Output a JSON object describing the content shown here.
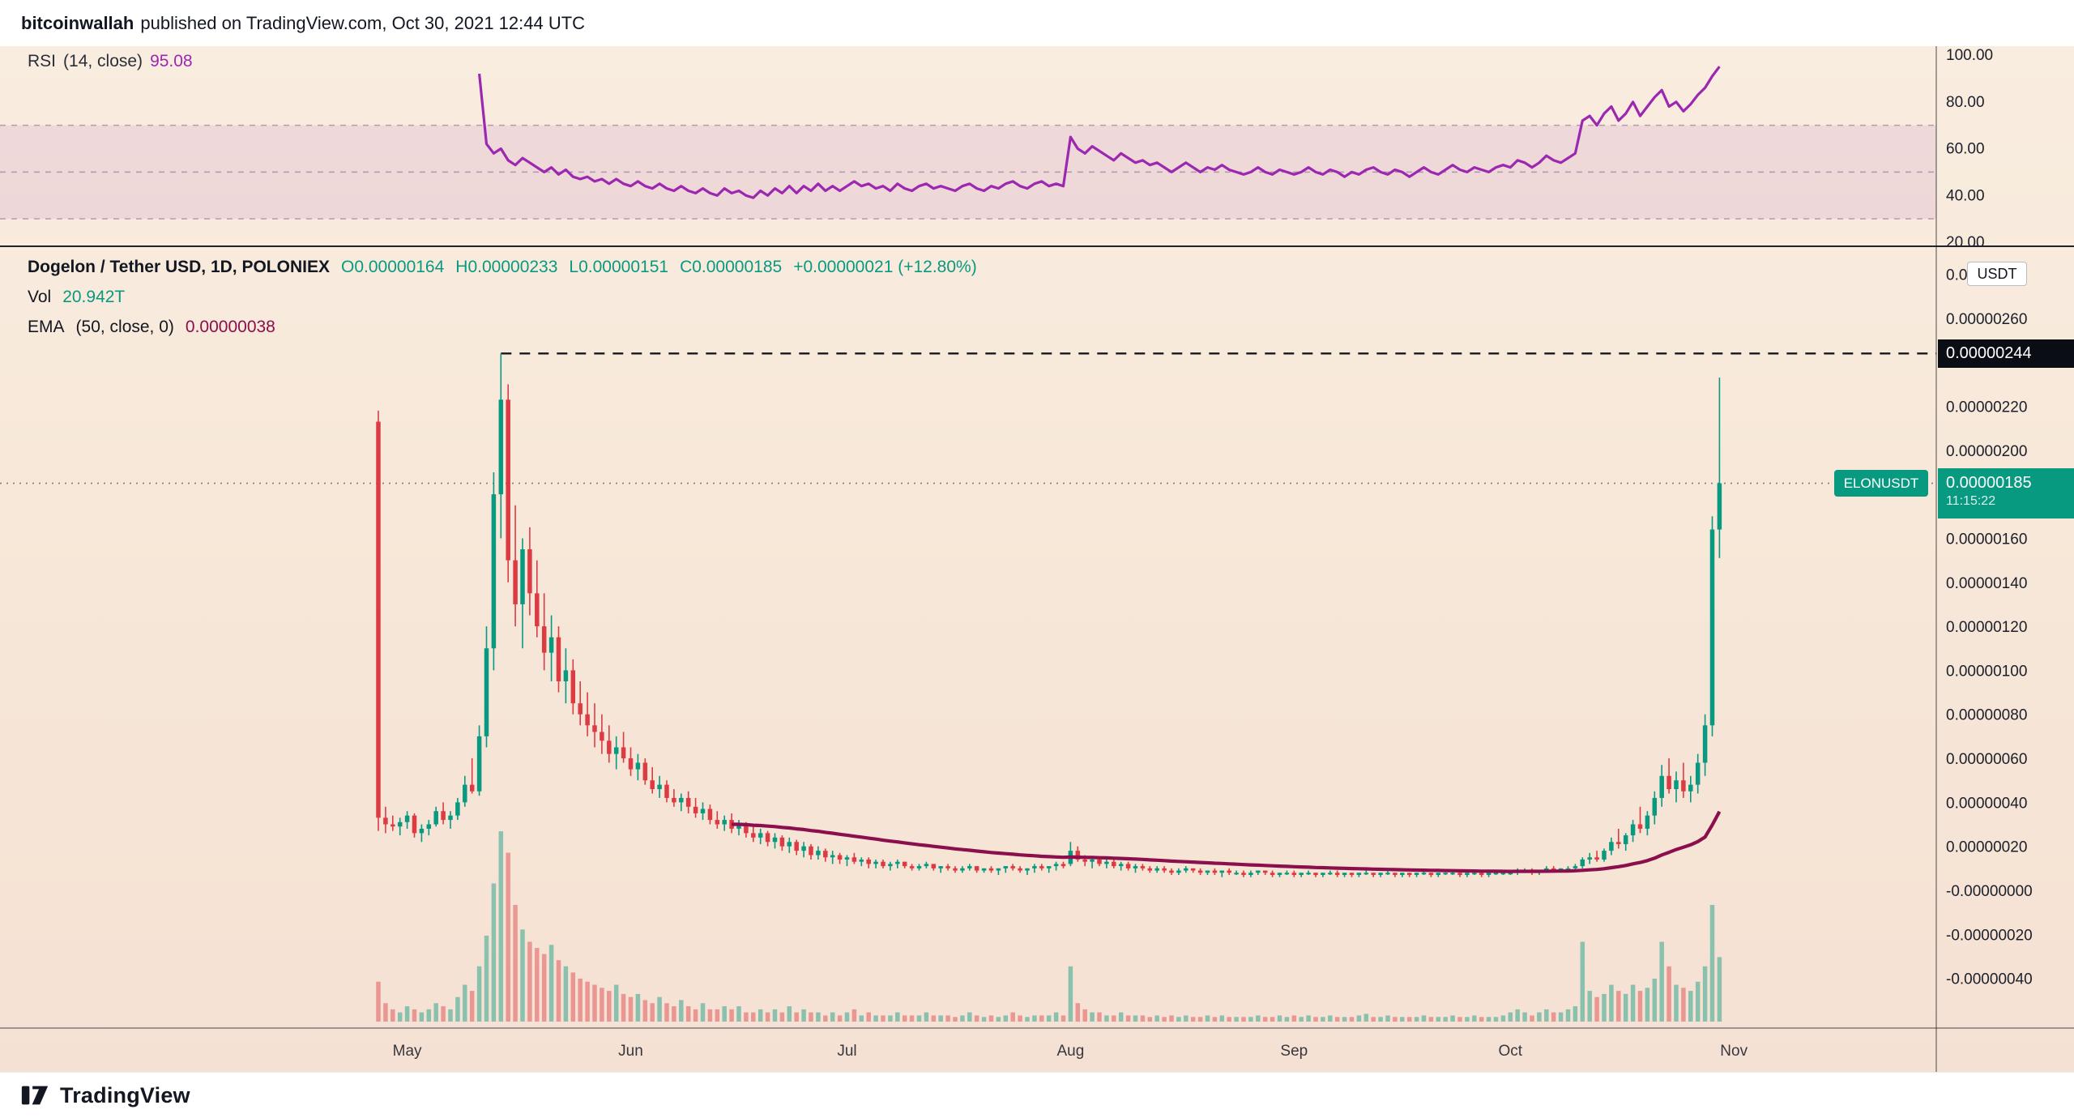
{
  "header": {
    "author": "bitcoinwallah",
    "caption": "published on TradingView.com, Oct 30, 2021 12:44 UTC"
  },
  "footer": {
    "brand": "TradingView"
  },
  "colors": {
    "up": "#089981",
    "down": "#dd3b44",
    "vol_up": "rgba(8,153,129,0.45)",
    "vol_down": "rgba(221,59,68,0.45)",
    "rsi": "#9c27b0",
    "ema": "#8b0e4d",
    "band_fill": "rgba(156,39,176,0.10)",
    "band_line": "rgba(128,96,142,0.55)",
    "axis_text": "#1b1f2b",
    "chip_black": "#0b0d14",
    "chip_green": "#089981"
  },
  "rsi_pane": {
    "legend": {
      "title": "RSI",
      "params": "(14, close)",
      "value": "95.08"
    },
    "band": [
      30,
      70
    ],
    "guides": [
      70,
      50,
      30
    ],
    "axis": [
      {
        "text": "100.00",
        "value": 100
      },
      {
        "text": "80.00",
        "value": 80
      },
      {
        "text": "60.00",
        "value": 60
      },
      {
        "text": "40.00",
        "value": 40
      },
      {
        "text": "20.00",
        "value": 20
      }
    ]
  },
  "main_pane": {
    "legend": {
      "title": "Dogelon / Tether USD, 1D, POLONIEX",
      "o": "O0.00000164",
      "h": "H0.00000233",
      "l": "L0.00000151",
      "c": "C0.00000185",
      "change": "+0.00000021 (+12.80%)",
      "vol_label": "Vol",
      "vol_value": "20.942T",
      "ema_label": "EMA",
      "ema_params": "(50, close, 0)",
      "ema_value": "0.00000038"
    },
    "usdt_chip": "USDT",
    "high_chip": "0.00000244",
    "price_chip": {
      "symbol": "ELONUSDT",
      "price": "0.00000185",
      "time": "11:15:22"
    },
    "axis_labels": [
      {
        "text": "0.00000280",
        "value": 280
      },
      {
        "text": "0.00000260",
        "value": 260
      },
      {
        "text": "0.00000220",
        "value": 220
      },
      {
        "text": "0.00000200",
        "value": 200
      },
      {
        "text": "0.00000160",
        "value": 160
      },
      {
        "text": "0.00000140",
        "value": 140
      },
      {
        "text": "0.00000120",
        "value": 120
      },
      {
        "text": "0.00000100",
        "value": 100
      },
      {
        "text": "0.00000080",
        "value": 80
      },
      {
        "text": "0.00000060",
        "value": 60
      },
      {
        "text": "0.00000040",
        "value": 40
      },
      {
        "text": "0.00000020",
        "value": 20
      },
      {
        "text": "-0.00000000",
        "value": 0
      },
      {
        "text": "-0.00000020",
        "value": -20
      },
      {
        "text": "-0.00000040",
        "value": -40
      }
    ]
  },
  "chart_data": {
    "type": "candlestick",
    "title": "Dogelon / Tether USD, 1D, POLONIEX",
    "symbol": "ELONUSDT",
    "interval": "1D",
    "price_multiplier": 1e-08,
    "current_price": 185,
    "current_volume": "20.942T",
    "high_line": 244,
    "high_line_start_index": 17,
    "months": [
      {
        "label": "May",
        "index": 4
      },
      {
        "label": "Jun",
        "index": 35
      },
      {
        "label": "Jul",
        "index": 65
      },
      {
        "label": "Aug",
        "index": 96
      },
      {
        "label": "Sep",
        "index": 127
      },
      {
        "label": "Oct",
        "index": 157
      },
      {
        "label": "Nov",
        "index": 188
      }
    ],
    "ohlcv": [
      [
        213,
        218,
        27,
        33,
        13
      ],
      [
        33,
        38,
        26,
        30,
        6
      ],
      [
        30,
        34,
        27,
        29,
        4
      ],
      [
        29,
        33,
        25,
        31,
        3
      ],
      [
        31,
        36,
        28,
        34,
        5
      ],
      [
        34,
        35,
        24,
        26,
        4
      ],
      [
        26,
        30,
        22,
        28,
        3
      ],
      [
        28,
        32,
        25,
        30,
        4
      ],
      [
        30,
        38,
        29,
        36,
        6
      ],
      [
        36,
        40,
        30,
        32,
        5
      ],
      [
        32,
        36,
        28,
        34,
        4
      ],
      [
        34,
        42,
        32,
        40,
        8
      ],
      [
        40,
        52,
        38,
        48,
        12
      ],
      [
        48,
        60,
        44,
        45,
        10
      ],
      [
        45,
        75,
        43,
        70,
        18
      ],
      [
        70,
        120,
        65,
        110,
        28
      ],
      [
        110,
        190,
        100,
        180,
        45
      ],
      [
        180,
        244,
        160,
        223,
        62
      ],
      [
        223,
        230,
        140,
        150,
        55
      ],
      [
        150,
        175,
        120,
        130,
        38
      ],
      [
        130,
        160,
        110,
        155,
        30
      ],
      [
        155,
        165,
        125,
        135,
        26
      ],
      [
        135,
        150,
        115,
        120,
        24
      ],
      [
        120,
        135,
        100,
        108,
        22
      ],
      [
        108,
        125,
        95,
        115,
        25
      ],
      [
        115,
        120,
        90,
        95,
        20
      ],
      [
        95,
        110,
        85,
        100,
        18
      ],
      [
        100,
        105,
        80,
        85,
        16
      ],
      [
        85,
        95,
        75,
        80,
        14
      ],
      [
        80,
        90,
        70,
        75,
        13
      ],
      [
        75,
        85,
        65,
        72,
        12
      ],
      [
        72,
        80,
        62,
        68,
        11
      ],
      [
        68,
        75,
        58,
        62,
        10
      ],
      [
        62,
        70,
        55,
        65,
        12
      ],
      [
        65,
        72,
        58,
        60,
        9
      ],
      [
        60,
        65,
        52,
        55,
        8
      ],
      [
        55,
        62,
        50,
        58,
        9
      ],
      [
        58,
        60,
        48,
        50,
        7
      ],
      [
        50,
        56,
        44,
        46,
        6
      ],
      [
        46,
        52,
        42,
        48,
        8
      ],
      [
        48,
        50,
        40,
        42,
        6
      ],
      [
        42,
        46,
        38,
        40,
        5
      ],
      [
        40,
        44,
        36,
        42,
        7
      ],
      [
        42,
        45,
        35,
        38,
        5
      ],
      [
        38,
        42,
        33,
        35,
        4
      ],
      [
        35,
        40,
        32,
        37,
        6
      ],
      [
        37,
        39,
        30,
        32,
        4
      ],
      [
        32,
        36,
        28,
        30,
        4
      ],
      [
        30,
        34,
        27,
        32,
        5
      ],
      [
        32,
        35,
        26,
        28,
        4
      ],
      [
        28,
        32,
        25,
        30,
        5
      ],
      [
        30,
        31,
        24,
        26,
        3
      ],
      [
        26,
        29,
        22,
        24,
        3
      ],
      [
        24,
        28,
        21,
        26,
        4
      ],
      [
        26,
        27,
        20,
        22,
        3
      ],
      [
        22,
        26,
        19,
        24,
        4
      ],
      [
        24,
        25,
        18,
        20,
        3
      ],
      [
        20,
        24,
        17,
        22,
        5
      ],
      [
        22,
        23,
        16,
        18,
        3
      ],
      [
        18,
        22,
        15,
        20,
        4
      ],
      [
        20,
        21,
        14,
        16,
        3
      ],
      [
        16,
        20,
        14,
        18,
        3
      ],
      [
        18,
        19,
        13,
        15,
        2
      ],
      [
        15,
        18,
        12,
        16,
        3
      ],
      [
        16,
        17,
        12,
        14,
        2
      ],
      [
        14,
        16,
        11,
        15,
        3
      ],
      [
        15,
        17,
        12,
        13,
        4
      ],
      [
        13,
        15,
        11,
        14,
        2
      ],
      [
        14,
        15,
        10,
        12,
        3
      ],
      [
        12,
        14,
        10,
        13,
        2
      ],
      [
        13,
        14,
        10,
        11,
        2
      ],
      [
        11,
        13,
        9,
        12,
        2
      ],
      [
        12,
        14,
        10,
        13,
        3
      ],
      [
        13,
        13,
        10,
        11,
        2
      ],
      [
        11,
        12,
        9,
        10,
        2
      ],
      [
        10,
        12,
        9,
        11,
        2
      ],
      [
        11,
        13,
        10,
        12,
        3
      ],
      [
        12,
        12,
        9,
        10,
        2
      ],
      [
        10,
        11,
        8,
        11,
        2
      ],
      [
        11,
        12,
        9,
        10,
        2
      ],
      [
        10,
        11,
        8,
        9,
        1.5
      ],
      [
        9,
        11,
        8,
        10,
        2
      ],
      [
        10,
        12,
        9,
        11,
        3
      ],
      [
        11,
        11,
        8,
        9,
        2
      ],
      [
        9,
        10,
        8,
        10,
        1.5
      ],
      [
        10,
        11,
        8,
        9,
        2
      ],
      [
        9,
        10,
        7,
        10,
        1.5
      ],
      [
        10,
        11,
        8,
        11,
        2
      ],
      [
        11,
        12,
        9,
        10,
        3
      ],
      [
        10,
        11,
        8,
        9,
        2
      ],
      [
        9,
        10,
        7,
        10,
        1.5
      ],
      [
        10,
        12,
        8,
        11,
        2
      ],
      [
        11,
        12,
        9,
        10,
        2
      ],
      [
        10,
        11,
        8,
        11,
        2
      ],
      [
        11,
        13,
        9,
        12,
        3
      ],
      [
        12,
        13,
        10,
        11,
        2
      ],
      [
        12,
        22,
        11,
        18,
        18
      ],
      [
        18,
        20,
        13,
        14,
        6
      ],
      [
        14,
        16,
        11,
        13,
        4
      ],
      [
        13,
        15,
        10,
        14,
        3
      ],
      [
        14,
        15,
        11,
        12,
        3
      ],
      [
        12,
        14,
        10,
        13,
        2
      ],
      [
        13,
        14,
        10,
        11,
        2
      ],
      [
        11,
        13,
        9,
        12,
        3
      ],
      [
        12,
        13,
        9,
        10,
        2
      ],
      [
        10,
        12,
        8,
        11,
        2
      ],
      [
        11,
        12,
        9,
        10,
        2
      ],
      [
        10,
        11,
        8,
        9,
        1.5
      ],
      [
        9,
        11,
        8,
        10,
        2
      ],
      [
        10,
        11,
        8,
        9,
        1.5
      ],
      [
        9,
        10,
        7,
        8,
        2
      ],
      [
        8,
        10,
        7,
        9,
        1.5
      ],
      [
        9,
        11,
        8,
        10,
        2
      ],
      [
        10,
        10,
        8,
        9,
        1.5
      ],
      [
        9,
        10,
        7,
        8,
        1.5
      ],
      [
        8,
        9,
        7,
        9,
        2
      ],
      [
        9,
        10,
        7,
        8,
        1.5
      ],
      [
        8,
        9,
        6,
        9,
        2
      ],
      [
        9,
        10,
        7,
        8,
        1.5
      ],
      [
        8,
        9,
        7,
        8,
        1.5
      ],
      [
        8,
        9,
        6,
        7,
        1.5
      ],
      [
        7,
        9,
        6,
        8,
        1.5
      ],
      [
        8,
        9,
        7,
        9,
        2
      ],
      [
        9,
        9,
        7,
        8,
        1.5
      ],
      [
        8,
        9,
        6,
        7,
        1.5
      ],
      [
        7,
        8,
        6,
        8,
        2
      ],
      [
        8,
        9,
        7,
        8,
        1.5
      ],
      [
        8,
        9,
        6,
        7,
        2
      ],
      [
        7,
        8,
        6,
        8,
        1.5
      ],
      [
        8,
        9,
        7,
        8,
        2
      ],
      [
        8,
        8,
        6,
        7,
        1.5
      ],
      [
        7,
        8,
        6,
        8,
        1.5
      ],
      [
        8,
        9,
        7,
        8,
        2
      ],
      [
        8,
        9,
        6,
        7,
        1.5
      ],
      [
        7,
        8,
        6,
        8,
        1.5
      ],
      [
        8,
        8,
        6,
        7,
        1.5
      ],
      [
        7,
        8,
        6,
        8,
        2
      ],
      [
        8,
        9,
        7,
        8,
        2.5
      ],
      [
        8,
        8,
        6,
        7,
        1.5
      ],
      [
        7,
        8,
        6,
        8,
        1.5
      ],
      [
        8,
        9,
        7,
        8,
        2
      ],
      [
        8,
        8,
        6,
        7,
        1.5
      ],
      [
        7,
        8,
        6,
        8,
        1.5
      ],
      [
        8,
        8,
        6,
        7,
        1.5
      ],
      [
        7,
        8,
        6,
        8,
        1.5
      ],
      [
        8,
        9,
        7,
        8,
        2
      ],
      [
        8,
        8,
        6,
        7,
        1.5
      ],
      [
        7,
        8,
        6,
        8,
        1.5
      ],
      [
        8,
        8,
        7,
        8,
        1.5
      ],
      [
        8,
        9,
        7,
        8,
        2
      ],
      [
        8,
        8,
        6,
        7,
        1.5
      ],
      [
        7,
        8,
        6,
        8,
        1.5
      ],
      [
        8,
        9,
        7,
        8,
        2
      ],
      [
        8,
        8,
        6,
        7,
        1.5
      ],
      [
        7,
        8,
        6,
        8,
        1.5
      ],
      [
        8,
        8,
        7,
        8,
        1.5
      ],
      [
        8,
        9,
        7,
        8,
        2
      ],
      [
        8,
        9,
        7,
        8,
        3
      ],
      [
        8,
        10,
        7,
        9,
        4
      ],
      [
        9,
        10,
        8,
        9,
        3
      ],
      [
        9,
        10,
        7,
        8,
        2
      ],
      [
        8,
        9,
        7,
        9,
        3
      ],
      [
        9,
        11,
        8,
        10,
        4
      ],
      [
        10,
        11,
        8,
        9,
        3
      ],
      [
        9,
        10,
        8,
        10,
        3
      ],
      [
        10,
        11,
        9,
        10,
        4
      ],
      [
        10,
        12,
        9,
        11,
        5
      ],
      [
        11,
        15,
        10,
        14,
        26
      ],
      [
        14,
        17,
        12,
        15,
        10
      ],
      [
        15,
        18,
        13,
        14,
        8
      ],
      [
        14,
        19,
        13,
        18,
        9
      ],
      [
        18,
        24,
        16,
        22,
        12
      ],
      [
        22,
        28,
        19,
        21,
        10
      ],
      [
        21,
        26,
        18,
        25,
        9
      ],
      [
        25,
        32,
        22,
        30,
        12
      ],
      [
        30,
        38,
        26,
        28,
        10
      ],
      [
        28,
        36,
        25,
        34,
        11
      ],
      [
        34,
        45,
        30,
        42,
        14
      ],
      [
        42,
        57,
        38,
        52,
        26
      ],
      [
        52,
        60,
        44,
        46,
        18
      ],
      [
        46,
        54,
        40,
        50,
        12
      ],
      [
        50,
        58,
        42,
        45,
        11
      ],
      [
        45,
        52,
        40,
        48,
        10
      ],
      [
        48,
        62,
        44,
        58,
        13
      ],
      [
        58,
        80,
        52,
        75,
        18
      ],
      [
        75,
        170,
        70,
        164,
        38
      ],
      [
        164,
        233,
        151,
        185,
        21
      ]
    ],
    "rsi": {
      "period": 14,
      "start_index": 14,
      "current": 95.08,
      "values": [
        92,
        62,
        58,
        60,
        55,
        53,
        56,
        54,
        52,
        50,
        52,
        49,
        51,
        48,
        47,
        48,
        46,
        47,
        45,
        47,
        45,
        44,
        46,
        44,
        43,
        45,
        43,
        42,
        44,
        42,
        41,
        43,
        41,
        40,
        43,
        41,
        42,
        40,
        39,
        42,
        40,
        43,
        41,
        44,
        41,
        44,
        42,
        45,
        42,
        44,
        42,
        44,
        46,
        44,
        45,
        43,
        44,
        42,
        45,
        43,
        42,
        44,
        45,
        43,
        44,
        43,
        42,
        44,
        45,
        43,
        42,
        44,
        43,
        45,
        46,
        44,
        43,
        45,
        46,
        44,
        45,
        44,
        65,
        60,
        58,
        61,
        59,
        57,
        55,
        58,
        56,
        54,
        55,
        53,
        54,
        52,
        50,
        52,
        54,
        52,
        50,
        52,
        51,
        53,
        51,
        50,
        49,
        50,
        52,
        50,
        49,
        51,
        50,
        49,
        50,
        52,
        50,
        49,
        51,
        50,
        48,
        50,
        49,
        51,
        52,
        50,
        49,
        51,
        50,
        48,
        50,
        52,
        50,
        49,
        51,
        53,
        51,
        50,
        52,
        51,
        50,
        52,
        53,
        52,
        55,
        54,
        52,
        54,
        57,
        55,
        54,
        56,
        58,
        72,
        74,
        70,
        75,
        78,
        72,
        75,
        80,
        74,
        78,
        82,
        85,
        78,
        80,
        76,
        79,
        83,
        86,
        91,
        95.08
      ]
    },
    "ema": {
      "period": 50,
      "start_index": 49,
      "seed": 30,
      "current": 3.8e-07
    },
    "volume_unit": "T",
    "rsi_band": [
      30,
      70
    ],
    "legend_position": "top-left",
    "grid": false
  }
}
